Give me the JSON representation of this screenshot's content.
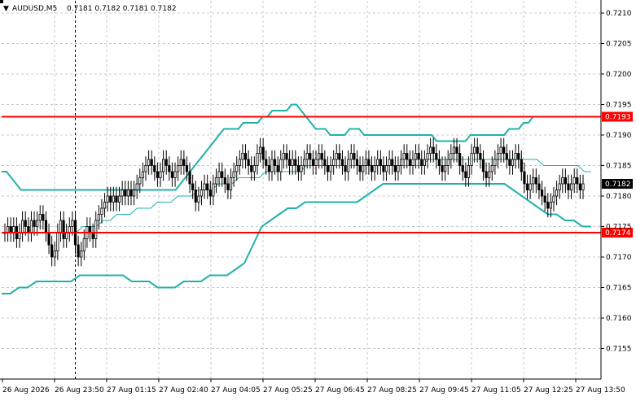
{
  "header": {
    "symbol": "AUDUSD,M5",
    "ohlc": "0.7181 0.7182 0.7181 0.7182"
  },
  "colors": {
    "background": "#ffffff",
    "grid": "#c8c8c8",
    "candle": "#000000",
    "bollinger": "#20b2aa",
    "level": "#ff0000",
    "level_label_bg": "#ff0000",
    "price_label_bg": "#000000"
  },
  "chart_data": {
    "type": "candlestick",
    "ylim": [
      0.715,
      0.7212
    ],
    "y_ticks": [
      "0.7210",
      "0.7205",
      "0.7200",
      "0.7195",
      "0.7190",
      "0.7185",
      "0.7180",
      "0.7175",
      "0.7170",
      "0.7165",
      "0.7160",
      "0.7155"
    ],
    "x_ticks": [
      "26 Aug 2026",
      "26 Aug 23:50",
      "27 Aug 01:15",
      "27 Aug 02:40",
      "27 Aug 04:05",
      "27 Aug 05:25",
      "27 Aug 06:45",
      "27 Aug 08:25",
      "27 Aug 09:45",
      "27 Aug 11:05",
      "27 Aug 12:25",
      "27 Aug 13:50"
    ],
    "grid": true,
    "levels": [
      {
        "label": "0.7193",
        "value": 0.7193
      },
      {
        "label": "0.7174",
        "value": 0.7174
      }
    ],
    "current_price": {
      "label": "0.7182",
      "value": 0.7182
    },
    "vertical_marker_index": 24,
    "candles_close": [
      0.7174,
      0.7175,
      0.7174,
      0.7175,
      0.7173,
      0.7174,
      0.7176,
      0.7175,
      0.7174,
      0.7176,
      0.7175,
      0.7176,
      0.7177,
      0.7176,
      0.7174,
      0.7172,
      0.717,
      0.7171,
      0.7174,
      0.7176,
      0.7173,
      0.7174,
      0.7175,
      0.7176,
      0.7172,
      0.717,
      0.7171,
      0.7173,
      0.7175,
      0.7174,
      0.7173,
      0.7176,
      0.7177,
      0.7178,
      0.7179,
      0.718,
      0.7179,
      0.718,
      0.7179,
      0.718,
      0.7181,
      0.718,
      0.7181,
      0.718,
      0.7181,
      0.7182,
      0.7183,
      0.7184,
      0.7185,
      0.7186,
      0.7185,
      0.7184,
      0.7183,
      0.7184,
      0.7186,
      0.7185,
      0.7184,
      0.7183,
      0.7184,
      0.7185,
      0.7186,
      0.7185,
      0.7184,
      0.7182,
      0.7181,
      0.7179,
      0.718,
      0.7181,
      0.7182,
      0.7181,
      0.718,
      0.7182,
      0.7183,
      0.7184,
      0.7183,
      0.7182,
      0.7181,
      0.7183,
      0.7184,
      0.7185,
      0.7186,
      0.7187,
      0.7186,
      0.7185,
      0.7184,
      0.7185,
      0.7187,
      0.7188,
      0.7186,
      0.7185,
      0.7184,
      0.7186,
      0.7185,
      0.7184,
      0.7186,
      0.7187,
      0.7186,
      0.7185,
      0.7186,
      0.7185,
      0.7184,
      0.7185,
      0.7186,
      0.7187,
      0.7186,
      0.7185,
      0.7186,
      0.7187,
      0.7186,
      0.7185,
      0.7184,
      0.7185,
      0.7186,
      0.7187,
      0.7186,
      0.7185,
      0.7184,
      0.7186,
      0.7187,
      0.7186,
      0.7185,
      0.7184,
      0.7185,
      0.7186,
      0.7185,
      0.7184,
      0.7185,
      0.7186,
      0.7185,
      0.7184,
      0.7185,
      0.7186,
      0.7185,
      0.7184,
      0.7185,
      0.7186,
      0.7187,
      0.7186,
      0.7185,
      0.7186,
      0.7187,
      0.7186,
      0.7185,
      0.7186,
      0.7187,
      0.7188,
      0.7187,
      0.7186,
      0.7185,
      0.7184,
      0.7185,
      0.7186,
      0.7187,
      0.7188,
      0.7187,
      0.7185,
      0.7184,
      0.7183,
      0.7185,
      0.7187,
      0.7188,
      0.7187,
      0.7186,
      0.7184,
      0.7183,
      0.7184,
      0.7185,
      0.7186,
      0.7187,
      0.7188,
      0.7187,
      0.7186,
      0.7185,
      0.7186,
      0.7187,
      0.7186,
      0.7184,
      0.7182,
      0.7181,
      0.7182,
      0.7183,
      0.7182,
      0.7181,
      0.718,
      0.7179,
      0.7178,
      0.7179,
      0.718,
      0.7181,
      0.7182,
      0.7183,
      0.7182,
      0.7181,
      0.7182,
      0.7183,
      0.7182,
      0.7181,
      0.7182
    ],
    "bb_upper": [
      0.7184,
      0.7184,
      0.7183,
      0.7182,
      0.7181,
      0.7181,
      0.7181,
      0.7181,
      0.7181,
      0.7181,
      0.7181,
      0.7181,
      0.7181,
      0.7181,
      0.7181,
      0.7181,
      0.7181,
      0.7181,
      0.7181,
      0.7181,
      0.7181,
      0.7181,
      0.7181,
      0.7181,
      0.7181,
      0.7181,
      0.7181,
      0.7181,
      0.7181,
      0.7181,
      0.7181,
      0.7181,
      0.7181,
      0.7181,
      0.7181,
      0.7181,
      0.7181,
      0.7182,
      0.7183,
      0.7184,
      0.7185,
      0.7186,
      0.7187,
      0.7188,
      0.7189,
      0.719,
      0.7191,
      0.7191,
      0.7191,
      0.7191,
      0.7192,
      0.7192,
      0.7192,
      0.7192,
      0.7193,
      0.7193,
      0.7194,
      0.7194,
      0.7194,
      0.7194,
      0.7195,
      0.7195,
      0.7194,
      0.7193,
      0.7192,
      0.7191,
      0.7191,
      0.7191,
      0.719,
      0.719,
      0.719,
      0.719,
      0.7191,
      0.7191,
      0.7191,
      0.719,
      0.719,
      0.719,
      0.719,
      0.719,
      0.719,
      0.719,
      0.719,
      0.719,
      0.719,
      0.719,
      0.719,
      0.719,
      0.719,
      0.719,
      0.7189,
      0.7189,
      0.7189,
      0.7189,
      0.7189,
      0.7189,
      0.7189,
      0.719,
      0.719,
      0.719,
      0.719,
      0.719,
      0.719,
      0.719,
      0.719,
      0.7191,
      0.7191,
      0.7191,
      0.7192,
      0.7192,
      0.7193,
      0.7193,
      0.7193,
      0.7193,
      0.7193,
      0.7193,
      0.7193,
      0.7193,
      0.7193,
      0.7193,
      0.7193,
      0.7193,
      0.7193
    ],
    "bb_middle": [
      0.7174,
      0.7174,
      0.7174,
      0.7174,
      0.7174,
      0.7174,
      0.7174,
      0.7174,
      0.7174,
      0.7174,
      0.7174,
      0.7174,
      0.7175,
      0.7175,
      0.7175,
      0.7176,
      0.7176,
      0.7177,
      0.7177,
      0.7177,
      0.7178,
      0.7178,
      0.7178,
      0.7179,
      0.7179,
      0.7179,
      0.718,
      0.718,
      0.718,
      0.7181,
      0.7181,
      0.7181,
      0.7182,
      0.7182,
      0.7182,
      0.7183,
      0.7183,
      0.7183,
      0.7183,
      0.7184,
      0.7184,
      0.7184,
      0.7184,
      0.7184,
      0.7184,
      0.7185,
      0.7185,
      0.7185,
      0.7185,
      0.7185,
      0.7185,
      0.7185,
      0.7185,
      0.7185,
      0.7185,
      0.7185,
      0.7185,
      0.7185,
      0.7185,
      0.7185,
      0.7185,
      0.7185,
      0.7185,
      0.7186,
      0.7186,
      0.7186,
      0.7186,
      0.7186,
      0.7186,
      0.7186,
      0.7186,
      0.7186,
      0.7186,
      0.7186,
      0.7186,
      0.7186,
      0.7186,
      0.7186,
      0.7186,
      0.7186,
      0.7185,
      0.7185,
      0.7185,
      0.7185,
      0.7185,
      0.7185,
      0.7184,
      0.7184
    ],
    "bb_lower": [
      0.7164,
      0.7164,
      0.7165,
      0.7165,
      0.7166,
      0.7166,
      0.7166,
      0.7166,
      0.7166,
      0.7167,
      0.7167,
      0.7167,
      0.7167,
      0.7167,
      0.7167,
      0.7166,
      0.7166,
      0.7166,
      0.7165,
      0.7165,
      0.7165,
      0.7166,
      0.7166,
      0.7166,
      0.7167,
      0.7167,
      0.7167,
      0.7168,
      0.7169,
      0.7172,
      0.7175,
      0.7176,
      0.7177,
      0.7178,
      0.7178,
      0.7179,
      0.7179,
      0.7179,
      0.7179,
      0.7179,
      0.7179,
      0.7179,
      0.718,
      0.7181,
      0.7182,
      0.7182,
      0.7182,
      0.7182,
      0.7182,
      0.7182,
      0.7182,
      0.7182,
      0.7182,
      0.7182,
      0.7182,
      0.7182,
      0.7182,
      0.7182,
      0.7182,
      0.7181,
      0.718,
      0.7179,
      0.7178,
      0.7177,
      0.7177,
      0.7176,
      0.7176,
      0.7175,
      0.7175
    ]
  }
}
